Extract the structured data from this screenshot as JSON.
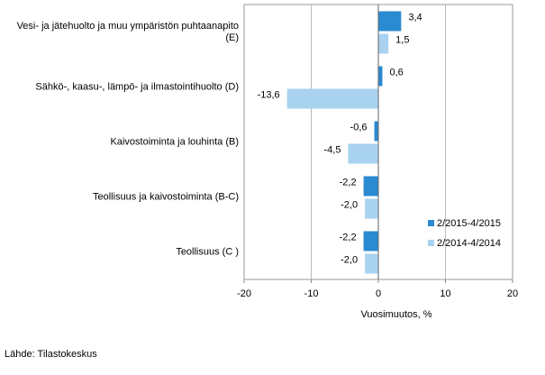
{
  "chart_data": {
    "type": "hbar",
    "categories": [
      "Vesi- ja jätehuolto ja muu ympäristön puhtaanapito\n(E)",
      "Sähkö-, kaasu-, lämpö- ja ilmastointihuolto (D)",
      "Kaivostoiminta ja louhinta (B)",
      "Teollisuus ja kaivostoiminta (B-C)",
      "Teollisuus (C )"
    ],
    "series": [
      {
        "name": "2/2015-4/2015",
        "color": "#2a8ad2",
        "values": [
          3.4,
          0.6,
          -0.6,
          -2.2,
          -2.2
        ],
        "value_labels": [
          "3,4",
          "0,6",
          "-0,6",
          "-2,2",
          "-2,2"
        ]
      },
      {
        "name": "2/2014-4/2014",
        "color": "#a9d2f0",
        "values": [
          1.5,
          -13.6,
          -4.5,
          -2.0,
          -2.0
        ],
        "value_labels": [
          "1,5",
          "-13,6",
          "-4,5",
          "-2,0",
          "-2,0"
        ]
      }
    ],
    "xlim": [
      -20,
      20
    ],
    "xticks": [
      -20,
      -10,
      0,
      10,
      20
    ],
    "grid": true,
    "xlabel": "Vuosimuutos, %",
    "source": "Lähde: Tilastokeskus",
    "legend": "lower-right"
  }
}
